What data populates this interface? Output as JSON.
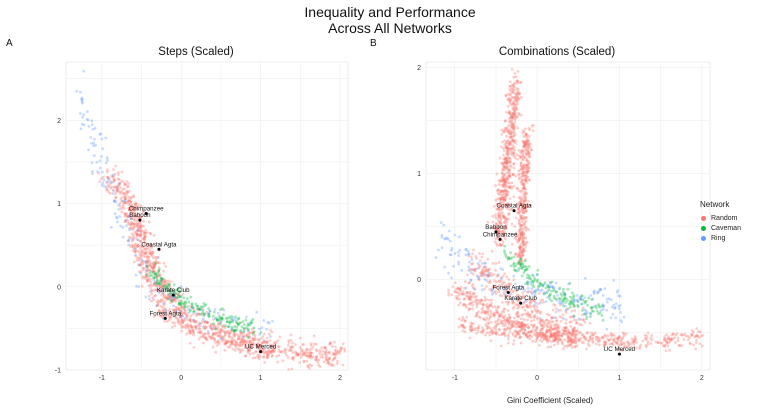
{
  "figure": {
    "title_line1": "Inequality and Performance",
    "title_line2": "Across All Networks",
    "x_label": "Gini Coefficient (Scaled)"
  },
  "legend": {
    "title": "Network",
    "items": [
      {
        "name": "Random",
        "color": "#F8766D"
      },
      {
        "name": "Caveman",
        "color": "#00BA38"
      },
      {
        "name": "Ring",
        "color": "#619CFF"
      }
    ]
  },
  "chart_data": [
    {
      "panel_label": "A",
      "type": "scatter",
      "title": "Steps (Scaled)",
      "xlim": [
        -1.45,
        2.1
      ],
      "ylim": [
        -1.0,
        2.7
      ],
      "x_ticks": [
        -1,
        0,
        1,
        2
      ],
      "y_ticks": [
        -1,
        0,
        1,
        2
      ],
      "grid": true,
      "series_colors": {
        "Random": "#F8766D",
        "Caveman": "#00BA38",
        "Ring": "#619CFF"
      },
      "clusters": [
        {
          "series": "Random",
          "n": 950,
          "path": [
            [
              -0.9,
              1.3
            ],
            [
              -0.7,
              1.1
            ],
            [
              -0.55,
              0.8
            ],
            [
              -0.45,
              0.5
            ],
            [
              -0.3,
              0.15
            ],
            [
              -0.15,
              -0.15
            ],
            [
              0.05,
              -0.35
            ],
            [
              0.3,
              -0.5
            ],
            [
              0.6,
              -0.6
            ],
            [
              1.0,
              -0.7
            ],
            [
              1.4,
              -0.78
            ],
            [
              1.8,
              -0.82
            ],
            [
              2.05,
              -0.83
            ]
          ],
          "spread": 0.09
        },
        {
          "series": "Random",
          "n": 260,
          "path": [
            [
              -0.7,
              1.0
            ],
            [
              -0.55,
              0.4
            ],
            [
              -0.4,
              0.0
            ],
            [
              -0.2,
              -0.35
            ],
            [
              0.2,
              -0.55
            ],
            [
              0.7,
              -0.68
            ],
            [
              1.1,
              -0.78
            ]
          ],
          "spread": 0.06
        },
        {
          "series": "Caveman",
          "n": 190,
          "path": [
            [
              -0.4,
              0.2
            ],
            [
              -0.2,
              0.0
            ],
            [
              0.1,
              -0.2
            ],
            [
              0.4,
              -0.35
            ],
            [
              0.7,
              -0.45
            ],
            [
              0.95,
              -0.5
            ]
          ],
          "spread": 0.05
        },
        {
          "series": "Ring",
          "n": 170,
          "path": [
            [
              -1.3,
              2.4
            ],
            [
              -1.1,
              1.8
            ],
            [
              -0.95,
              1.3
            ],
            [
              -0.75,
              0.8
            ],
            [
              -0.55,
              0.3
            ],
            [
              -0.35,
              -0.1
            ],
            [
              0.1,
              -0.35
            ],
            [
              0.6,
              -0.45
            ],
            [
              1.1,
              -0.52
            ]
          ],
          "spread": 0.1
        }
      ],
      "annotations": [
        {
          "label": "Chimpanzee",
          "x": -0.44,
          "y": 0.88
        },
        {
          "label": "Baboon",
          "x": -0.52,
          "y": 0.8
        },
        {
          "label": "Coastal Agta",
          "x": -0.28,
          "y": 0.45
        },
        {
          "label": "Karate Club",
          "x": -0.1,
          "y": -0.1
        },
        {
          "label": "Forest Agta",
          "x": -0.2,
          "y": -0.38
        },
        {
          "label": "UC Merced",
          "x": 1.0,
          "y": -0.78
        }
      ]
    },
    {
      "panel_label": "B",
      "type": "scatter",
      "title": "Combinations (Scaled)",
      "xlim": [
        -1.35,
        2.1
      ],
      "ylim": [
        -0.85,
        2.05
      ],
      "x_ticks": [
        -1,
        0,
        1,
        2
      ],
      "y_ticks": [
        0,
        1,
        2
      ],
      "grid": true,
      "series_colors": {
        "Random": "#F8766D",
        "Caveman": "#00BA38",
        "Ring": "#619CFF"
      },
      "clusters": [
        {
          "series": "Random",
          "n": 520,
          "path": [
            [
              -0.45,
              0.4
            ],
            [
              -0.4,
              0.8
            ],
            [
              -0.35,
              1.2
            ],
            [
              -0.3,
              1.6
            ],
            [
              -0.25,
              1.85
            ]
          ],
          "spread": 0.08
        },
        {
          "series": "Random",
          "n": 360,
          "path": [
            [
              -0.2,
              0.2
            ],
            [
              -0.18,
              0.7
            ],
            [
              -0.15,
              1.1
            ],
            [
              -0.12,
              1.4
            ]
          ],
          "spread": 0.06
        },
        {
          "series": "Random",
          "n": 420,
          "path": [
            [
              -1.0,
              -0.1
            ],
            [
              -0.7,
              -0.25
            ],
            [
              -0.3,
              -0.4
            ],
            [
              0.1,
              -0.5
            ],
            [
              0.5,
              -0.55
            ]
          ],
          "spread": 0.06
        },
        {
          "series": "Random",
          "n": 420,
          "path": [
            [
              -0.95,
              -0.4
            ],
            [
              -0.5,
              -0.48
            ],
            [
              0.0,
              -0.52
            ],
            [
              0.5,
              -0.55
            ],
            [
              1.0,
              -0.58
            ],
            [
              1.5,
              -0.6
            ],
            [
              2.0,
              -0.52
            ]
          ],
          "spread": 0.04
        },
        {
          "series": "Random",
          "n": 280,
          "path": [
            [
              -0.8,
              0.15
            ],
            [
              -0.5,
              0.0
            ],
            [
              -0.2,
              -0.2
            ],
            [
              0.2,
              -0.35
            ],
            [
              0.6,
              -0.45
            ]
          ],
          "spread": 0.08
        },
        {
          "series": "Caveman",
          "n": 170,
          "path": [
            [
              -0.4,
              0.25
            ],
            [
              -0.1,
              0.05
            ],
            [
              0.2,
              -0.12
            ],
            [
              0.5,
              -0.25
            ],
            [
              0.8,
              -0.3
            ]
          ],
          "spread": 0.05
        },
        {
          "series": "Ring",
          "n": 200,
          "path": [
            [
              -1.2,
              0.3
            ],
            [
              -0.9,
              0.15
            ],
            [
              -0.6,
              0.0
            ],
            [
              -0.3,
              -0.05
            ],
            [
              0.2,
              -0.15
            ],
            [
              0.6,
              -0.25
            ],
            [
              1.0,
              -0.22
            ]
          ],
          "spread": 0.1
        }
      ],
      "annotations": [
        {
          "label": "Coastal Agta",
          "x": -0.28,
          "y": 0.65
        },
        {
          "label": "Baboon",
          "x": -0.5,
          "y": 0.45
        },
        {
          "label": "Chimpanzee",
          "x": -0.45,
          "y": 0.38
        },
        {
          "label": "Forest Agta",
          "x": -0.35,
          "y": -0.12
        },
        {
          "label": "Karate Club",
          "x": -0.2,
          "y": -0.22
        },
        {
          "label": "UC Merced",
          "x": 1.0,
          "y": -0.7
        }
      ]
    }
  ]
}
